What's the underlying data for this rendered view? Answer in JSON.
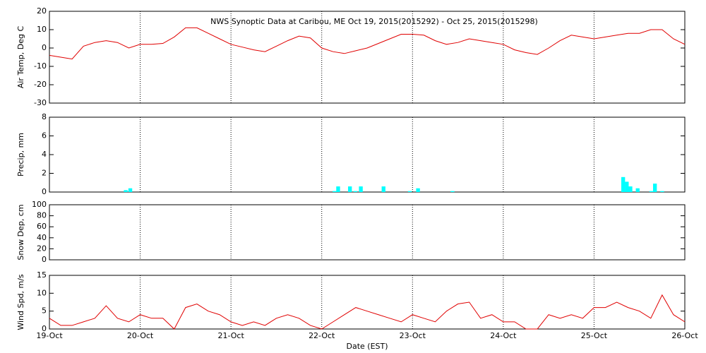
{
  "chart_data": [
    {
      "type": "line",
      "title": "NWS Synoptic Data at Caribou, ME   Oct 19, 2015(2015292) - Oct 25, 2015(2015298)",
      "ylabel": "Air Temp, Deg C",
      "color": "#e00000",
      "ylim": [
        -30,
        20
      ],
      "yticks": [
        -30,
        -20,
        -10,
        0,
        10,
        20
      ],
      "x": [
        0,
        0.125,
        0.25,
        0.375,
        0.5,
        0.625,
        0.75,
        0.875,
        1,
        1.125,
        1.25,
        1.375,
        1.5,
        1.625,
        1.75,
        1.875,
        2,
        2.125,
        2.25,
        2.375,
        2.5,
        2.625,
        2.75,
        2.875,
        3,
        3.125,
        3.25,
        3.375,
        3.5,
        3.625,
        3.75,
        3.875,
        4,
        4.125,
        4.25,
        4.375,
        4.5,
        4.625,
        4.75,
        4.875,
        5,
        5.125,
        5.25,
        5.375,
        5.5,
        5.625,
        5.75,
        5.875,
        6,
        6.125,
        6.25,
        6.375,
        6.5,
        6.625,
        6.75,
        6.875,
        7
      ],
      "values": [
        -4,
        -5,
        -6,
        1,
        3,
        4,
        3,
        0,
        2,
        2,
        2.5,
        6,
        11,
        11,
        8,
        5,
        2,
        0.5,
        -1,
        -2,
        1,
        4,
        6.5,
        5.5,
        0,
        -2,
        -3,
        -1.5,
        0,
        2.5,
        5,
        7.5,
        7.5,
        7,
        4,
        2,
        3,
        5,
        4,
        3,
        2,
        -1,
        -2.5,
        -3.5,
        0,
        4,
        7,
        6,
        5,
        6,
        7,
        8,
        8,
        10,
        10,
        5,
        2
      ]
    },
    {
      "type": "bar",
      "ylabel": "Precip, mm",
      "color": "#00ffff",
      "ylim": [
        0,
        8
      ],
      "yticks": [
        0,
        2,
        4,
        6,
        8
      ],
      "x": [
        0.82,
        0.87,
        3.12,
        3.16,
        3.29,
        3.35,
        3.41,
        3.66,
        3.95,
        4.04,
        4.42,
        6.3,
        6.34,
        6.38,
        6.46,
        6.61,
        6.65,
        6.73
      ],
      "values": [
        0.2,
        0.4,
        0.1,
        0.6,
        0.6,
        0.1,
        0.6,
        0.6,
        0.1,
        0.4,
        0.1,
        1.6,
        1.1,
        0.6,
        0.4,
        0.1,
        0.9,
        0.1
      ]
    },
    {
      "type": "line",
      "ylabel": "Snow Dep, cm",
      "ylim": [
        0,
        100
      ],
      "yticks": [
        0,
        20,
        40,
        60,
        80,
        100
      ]
    },
    {
      "type": "line",
      "ylabel": "Wind Spd, m/s",
      "xlabel": "Date (EST)",
      "color": "#e00000",
      "ylim": [
        0,
        15
      ],
      "yticks": [
        0,
        5,
        10,
        15
      ],
      "xlim": [
        0,
        7
      ],
      "xticks": [
        {
          "value": 0,
          "label": "19-Oct"
        },
        {
          "value": 1,
          "label": "20-Oct"
        },
        {
          "value": 2,
          "label": "21-Oct"
        },
        {
          "value": 3,
          "label": "22-Oct"
        },
        {
          "value": 4,
          "label": "23-Oct"
        },
        {
          "value": 5,
          "label": "24-Oct"
        },
        {
          "value": 6,
          "label": "25-Oct"
        },
        {
          "value": 7,
          "label": "26-Oct"
        }
      ],
      "x": [
        0,
        0.125,
        0.25,
        0.375,
        0.5,
        0.625,
        0.75,
        0.875,
        1,
        1.125,
        1.25,
        1.375,
        1.5,
        1.625,
        1.75,
        1.875,
        2,
        2.125,
        2.25,
        2.375,
        2.5,
        2.625,
        2.75,
        2.875,
        3,
        3.125,
        3.25,
        3.375,
        3.5,
        3.625,
        3.75,
        3.875,
        4,
        4.125,
        4.25,
        4.375,
        4.5,
        4.625,
        4.75,
        4.875,
        5,
        5.125,
        5.25,
        5.375,
        5.5,
        5.625,
        5.75,
        5.875,
        6,
        6.125,
        6.25,
        6.375,
        6.5,
        6.625,
        6.75,
        6.875,
        7
      ],
      "values": [
        3,
        1,
        1,
        2,
        3,
        6.5,
        3,
        2,
        4,
        3,
        3,
        0,
        6,
        7,
        5,
        4,
        2,
        1,
        2,
        1,
        3,
        4,
        3,
        1,
        0,
        2,
        4,
        6,
        5,
        4,
        3,
        2,
        4,
        3,
        2,
        5,
        7,
        7.5,
        3,
        4,
        2,
        2,
        0,
        0,
        4,
        3,
        4,
        3,
        6,
        6,
        7.5,
        6,
        5,
        3,
        9.5,
        4,
        2
      ]
    }
  ]
}
